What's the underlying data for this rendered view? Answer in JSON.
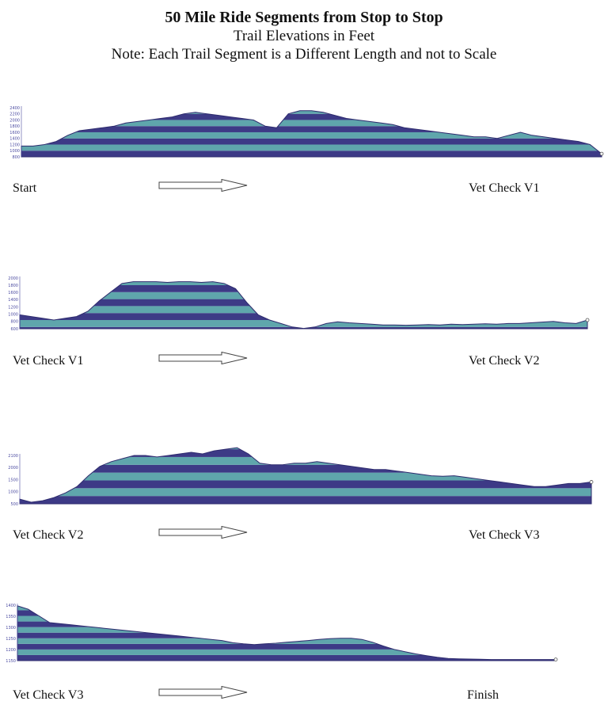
{
  "header": {
    "title": "50 Mile Ride Segments from Stop to Stop",
    "subtitle": "Trail Elevations in Feet",
    "note": "Note: Each Trail Segment is a Different Length and not to Scale"
  },
  "colors": {
    "stripe_dark": "#3d3a86",
    "stripe_light": "#5fa6ac",
    "outline": "#2e2b6e",
    "axis_labels": "#4a4aa0",
    "arrow_stroke": "#444444"
  },
  "chart_data": [
    {
      "type": "area",
      "segment": 1,
      "start_label": "Start",
      "end_label": "Vet Check V1",
      "yticks": [
        "2400",
        "2200",
        "2000",
        "1800",
        "1600",
        "1400",
        "1200",
        "1000",
        "800"
      ],
      "ylim": [
        800,
        2450
      ],
      "band_size": 200,
      "x": [
        0,
        2,
        4,
        6,
        8,
        10,
        12,
        14,
        16,
        18,
        20,
        22,
        24,
        26,
        28,
        30,
        32,
        34,
        36,
        38,
        40,
        42,
        44,
        46,
        48,
        50,
        52,
        54,
        56,
        58,
        60,
        62,
        64,
        66,
        68,
        70,
        72,
        74,
        76,
        78,
        80,
        82,
        84,
        86,
        88,
        90,
        92,
        94,
        96,
        98,
        100
      ],
      "y": [
        1150,
        1150,
        1200,
        1300,
        1500,
        1650,
        1700,
        1750,
        1800,
        1900,
        1950,
        2000,
        2050,
        2100,
        2200,
        2250,
        2200,
        2150,
        2100,
        2050,
        2000,
        1800,
        1750,
        2200,
        2300,
        2300,
        2250,
        2150,
        2050,
        2000,
        1950,
        1900,
        1850,
        1750,
        1700,
        1650,
        1600,
        1550,
        1500,
        1450,
        1450,
        1400,
        1500,
        1600,
        1500,
        1450,
        1400,
        1350,
        1300,
        1200,
        900
      ]
    },
    {
      "type": "area",
      "segment": 2,
      "start_label": "Vet Check V1",
      "end_label": "Vet Check V2",
      "yticks": [
        "2000",
        "1800",
        "1600",
        "1400",
        "1200",
        "1000",
        "800",
        "600"
      ],
      "ylim": [
        550,
        2050
      ],
      "band_size": 200,
      "x": [
        0,
        2,
        4,
        6,
        8,
        10,
        12,
        14,
        16,
        18,
        20,
        22,
        24,
        26,
        28,
        30,
        32,
        34,
        36,
        38,
        40,
        42,
        44,
        46,
        48,
        50,
        52,
        54,
        56,
        58,
        60,
        62,
        64,
        66,
        68,
        70,
        72,
        74,
        76,
        78,
        80,
        82,
        84,
        86,
        88,
        90,
        92,
        94,
        96,
        98,
        100
      ],
      "y": [
        950,
        900,
        850,
        800,
        850,
        900,
        1050,
        1350,
        1600,
        1850,
        1900,
        1900,
        1900,
        1880,
        1900,
        1900,
        1880,
        1900,
        1850,
        1700,
        1300,
        950,
        800,
        700,
        600,
        560,
        600,
        700,
        750,
        720,
        700,
        680,
        660,
        660,
        650,
        660,
        670,
        660,
        680,
        670,
        680,
        690,
        680,
        700,
        700,
        720,
        740,
        760,
        720,
        700,
        800
      ]
    },
    {
      "type": "area",
      "segment": 3,
      "start_label": "Vet Check V2",
      "end_label": "Vet Check V3",
      "yticks": [
        "2100",
        "2000",
        "1500",
        "1000",
        "500"
      ],
      "ylim": [
        500,
        2100
      ],
      "band_size": 250,
      "x": [
        0,
        2,
        4,
        6,
        8,
        10,
        12,
        14,
        16,
        18,
        20,
        22,
        24,
        26,
        28,
        30,
        32,
        34,
        36,
        38,
        40,
        42,
        44,
        46,
        48,
        50,
        52,
        54,
        56,
        58,
        60,
        62,
        64,
        66,
        68,
        70,
        72,
        74,
        76,
        78,
        80,
        82,
        84,
        86,
        88,
        90,
        92,
        94,
        96,
        98,
        100
      ],
      "y": [
        650,
        550,
        600,
        700,
        850,
        1050,
        1400,
        1700,
        1850,
        1950,
        2050,
        2050,
        2000,
        2050,
        2100,
        2150,
        2100,
        2200,
        2250,
        2300,
        2100,
        1800,
        1750,
        1750,
        1800,
        1800,
        1850,
        1800,
        1750,
        1700,
        1650,
        1600,
        1600,
        1550,
        1500,
        1450,
        1400,
        1380,
        1400,
        1350,
        1300,
        1250,
        1200,
        1150,
        1100,
        1050,
        1050,
        1100,
        1150,
        1150,
        1200
      ]
    },
    {
      "type": "area",
      "segment": 4,
      "start_label": "Vet Check V3",
      "end_label": "Finish",
      "yticks": [
        "1400",
        "1350",
        "1300",
        "1250",
        "1200",
        "1150"
      ],
      "ylim": [
        1150,
        1405
      ],
      "band_size": 25,
      "x": [
        0,
        2,
        4,
        6,
        8,
        10,
        12,
        14,
        16,
        18,
        20,
        22,
        24,
        26,
        28,
        30,
        32,
        34,
        36,
        38,
        40,
        42,
        44,
        46,
        48,
        50,
        52,
        54,
        56,
        58,
        60,
        62,
        64,
        66,
        68,
        70,
        72,
        74,
        76,
        78,
        80,
        82,
        84,
        86,
        88,
        90,
        92,
        94,
        96,
        98,
        100
      ],
      "y": [
        1395,
        1380,
        1350,
        1320,
        1315,
        1310,
        1305,
        1300,
        1295,
        1290,
        1285,
        1280,
        1275,
        1270,
        1265,
        1260,
        1255,
        1250,
        1245,
        1240,
        1230,
        1225,
        1222,
        1225,
        1228,
        1232,
        1236,
        1240,
        1245,
        1248,
        1250,
        1250,
        1245,
        1232,
        1215,
        1200,
        1190,
        1180,
        1172,
        1165,
        1160,
        1158,
        1157,
        1156,
        1155,
        1155,
        1155,
        1155,
        1155,
        1155,
        1155
      ]
    }
  ]
}
